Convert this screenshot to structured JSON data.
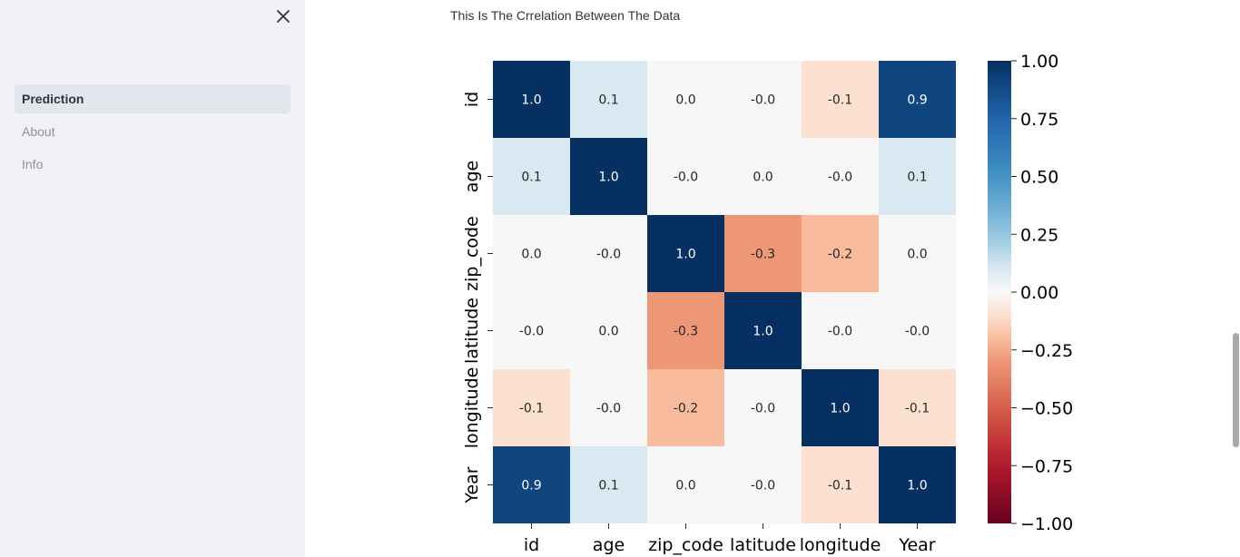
{
  "sidebar": {
    "nav": [
      {
        "label": "Prediction",
        "active": true
      },
      {
        "label": "About",
        "active": false
      },
      {
        "label": "Info",
        "active": false
      }
    ],
    "close_icon": "close-icon"
  },
  "main": {
    "caption": "This Is The Crrelation Between The Data"
  },
  "chart_data": {
    "type": "heatmap",
    "variables": [
      "id",
      "age",
      "zip_code",
      "latitude",
      "longitude",
      "Year"
    ],
    "matrix": [
      [
        1.0,
        0.1,
        0.0,
        -0.0,
        -0.1,
        0.9
      ],
      [
        0.1,
        1.0,
        -0.0,
        0.0,
        -0.0,
        0.1
      ],
      [
        0.0,
        -0.0,
        1.0,
        -0.3,
        -0.2,
        0.0
      ],
      [
        -0.0,
        0.0,
        -0.3,
        1.0,
        -0.0,
        -0.0
      ],
      [
        -0.1,
        -0.0,
        -0.2,
        -0.0,
        1.0,
        -0.1
      ],
      [
        0.9,
        0.1,
        0.0,
        -0.0,
        -0.1,
        1.0
      ]
    ],
    "annotation_format": "{:.1f}",
    "colormap": "RdBu",
    "vmin": -1.0,
    "vmax": 1.0,
    "colorbar_ticks": [
      "1.00",
      "0.75",
      "0.50",
      "0.25",
      "0.00",
      "−0.25",
      "−0.50",
      "−0.75",
      "−1.00"
    ],
    "colorbar_values": [
      1.0,
      0.75,
      0.5,
      0.25,
      0.0,
      -0.25,
      -0.5,
      -0.75,
      -1.0
    ]
  }
}
